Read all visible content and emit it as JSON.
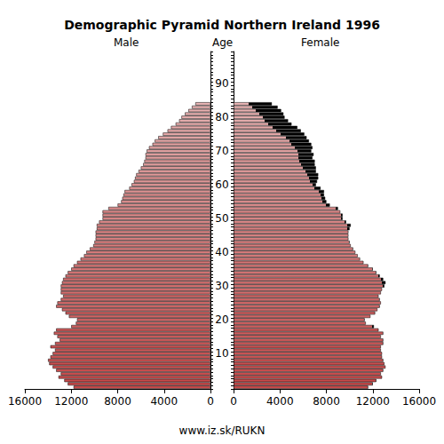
{
  "chart_data": {
    "type": "bar",
    "orientation": "horizontal",
    "title": "Demographic Pyramid Northern Ireland 1996",
    "ylabel": "Age",
    "annotations": [
      "www.iz.sk/RUKN"
    ],
    "categories": [
      null,
      null,
      null,
      null,
      null,
      null,
      null,
      null,
      null,
      null,
      10,
      null,
      null,
      null,
      null,
      null,
      null,
      null,
      null,
      null,
      20,
      null,
      null,
      null,
      null,
      null,
      null,
      null,
      null,
      null,
      30,
      null,
      null,
      null,
      null,
      null,
      null,
      null,
      null,
      null,
      40,
      null,
      null,
      null,
      null,
      null,
      null,
      null,
      null,
      null,
      50,
      null,
      null,
      null,
      null,
      null,
      null,
      null,
      null,
      null,
      60,
      null,
      null,
      null,
      null,
      null,
      null,
      null,
      null,
      null,
      70,
      null,
      null,
      null,
      null,
      null,
      null,
      null,
      null,
      null,
      80,
      null,
      null,
      null,
      null,
      null,
      null,
      null,
      null,
      null,
      90,
      null,
      null,
      null,
      null,
      null,
      null,
      null,
      null,
      null
    ],
    "series": [
      {
        "name": "Male",
        "color": "#c84848",
        "values": [
          11800,
          12300,
          12600,
          13100,
          12900,
          13300,
          13600,
          13900,
          14000,
          13800,
          13600,
          13400,
          13800,
          13400,
          13000,
          13200,
          13500,
          13300,
          12000,
          11600,
          11500,
          12200,
          12500,
          12800,
          13300,
          13200,
          12900,
          12700,
          12900,
          12900,
          12900,
          12800,
          12700,
          12500,
          12300,
          12000,
          11800,
          11500,
          11200,
          10900,
          10700,
          10400,
          10100,
          10000,
          9900,
          9900,
          9900,
          9800,
          9800,
          9600,
          9300,
          9300,
          9300,
          8800,
          8000,
          7700,
          7600,
          7500,
          7400,
          7000,
          6800,
          6600,
          6500,
          6400,
          6200,
          6000,
          5800,
          5700,
          5600,
          5600,
          5500,
          5300,
          5000,
          4800,
          4500,
          4100,
          3700,
          3400,
          3000,
          2700,
          2500,
          2200,
          1900,
          1600,
          1300,
          null,
          null,
          null,
          null,
          null,
          null,
          null,
          null,
          null,
          null,
          null,
          null,
          null,
          null,
          null
        ]
      },
      {
        "name": "Female",
        "color": "#c84848",
        "values": [
          11600,
          12000,
          12300,
          12800,
          12700,
          12900,
          13100,
          13000,
          12900,
          12800,
          12800,
          12700,
          12700,
          12900,
          12900,
          12700,
          12900,
          12500,
          12100,
          11400,
          11300,
          11800,
          12200,
          12400,
          12600,
          12700,
          12600,
          12500,
          12700,
          12800,
          13000,
          13100,
          12900,
          12600,
          12300,
          12000,
          11600,
          11200,
          10900,
          10700,
          10500,
          10300,
          10100,
          10000,
          9900,
          9900,
          9900,
          10000,
          10100,
          9700,
          9400,
          9400,
          9200,
          9000,
          8300,
          8000,
          7900,
          7800,
          7800,
          7500,
          7100,
          7200,
          7300,
          7300,
          7100,
          7100,
          7000,
          7000,
          6800,
          6900,
          6700,
          6800,
          6700,
          6500,
          6300,
          6100,
          5800,
          5500,
          5000,
          4700,
          4400,
          4300,
          4100,
          3800,
          3300,
          null,
          null,
          null,
          null,
          null,
          null,
          null,
          null,
          null,
          null,
          null,
          null,
          null,
          null,
          null
        ]
      }
    ],
    "xlim": [
      0,
      16000
    ],
    "xticks": [
      0,
      4000,
      8000,
      12000,
      16000
    ],
    "grid": false
  }
}
